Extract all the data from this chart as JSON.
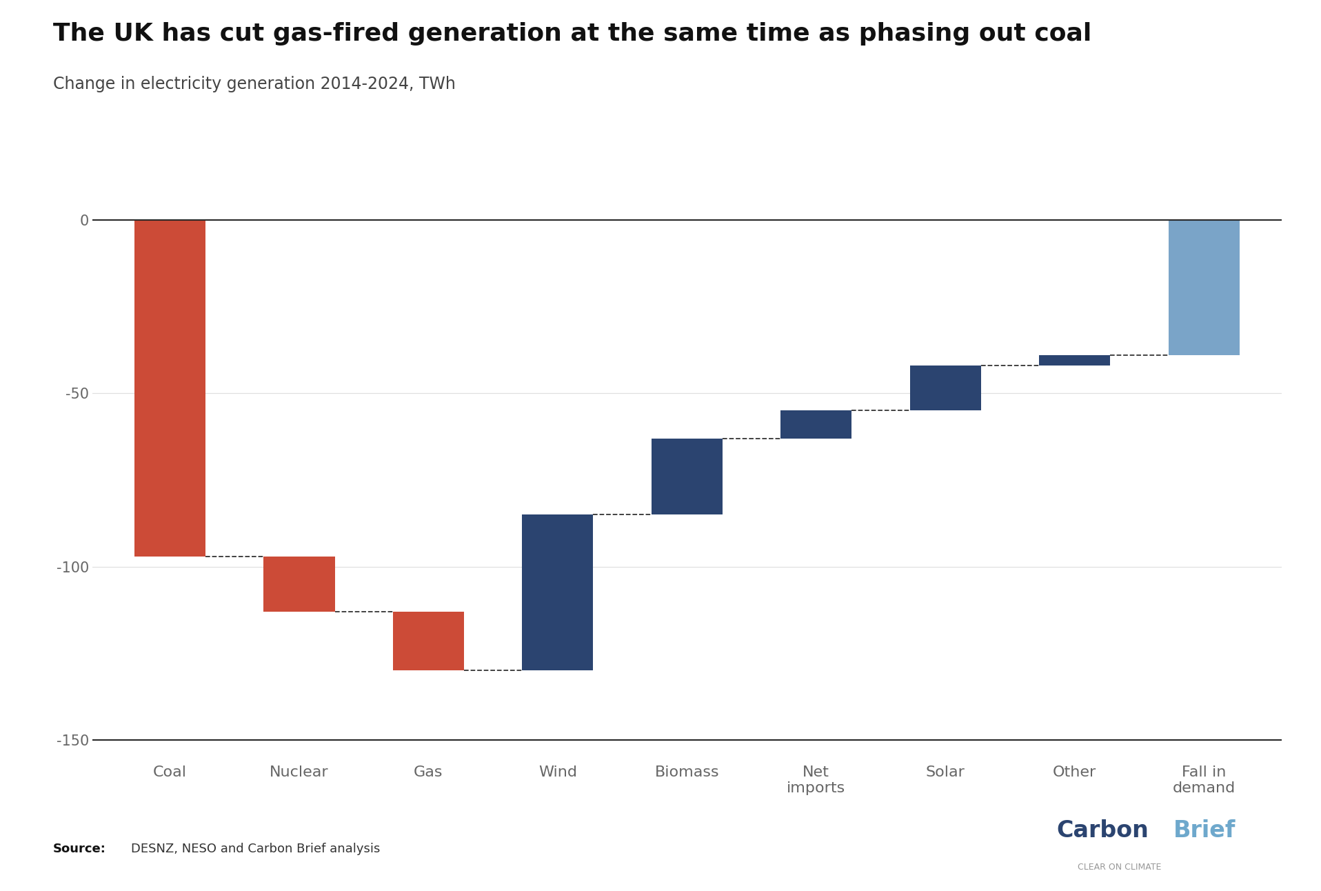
{
  "title": "The UK has cut gas-fired generation at the same time as phasing out coal",
  "subtitle": "Change in electricity generation 2014-2024, TWh",
  "categories": [
    "Coal",
    "Nuclear",
    "Gas",
    "Wind",
    "Biomass",
    "Net\nimports",
    "Solar",
    "Other",
    "Fall in\ndemand"
  ],
  "values": [
    -97,
    -16,
    -17,
    45,
    22,
    8,
    13,
    3,
    -39
  ],
  "colors": [
    "#cc4b37",
    "#cc4b37",
    "#cc4b37",
    "#2b4470",
    "#2b4470",
    "#2b4470",
    "#2b4470",
    "#2b4470",
    "#7aa4c8"
  ],
  "ylim": [
    -155,
    12
  ],
  "yticks": [
    0,
    -50,
    -100,
    -150
  ],
  "title_fontsize": 26,
  "subtitle_fontsize": 17,
  "tick_fontsize": 15,
  "label_fontsize": 16,
  "source_bold": "Source:",
  "source_plain": "DESNZ, NESO and Carbon Brief analysis",
  "bg_color": "#ffffff",
  "grid_color": "#e0e0e0",
  "axis_color": "#666666",
  "dashed_line_color": "#333333",
  "carbon_color": "#2b4470",
  "brief_color": "#6ea8cc",
  "clear_color": "#999999"
}
